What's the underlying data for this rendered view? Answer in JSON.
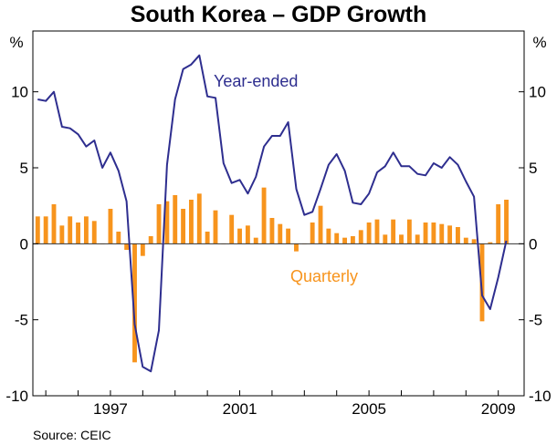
{
  "chart_data": {
    "type": "bar+line",
    "title": "South Korea – GDP Growth",
    "y_unit_left": "%",
    "y_unit_right": "%",
    "ylim": [
      -10,
      14
    ],
    "y_ticks": [
      10,
      5,
      0,
      -5,
      -10
    ],
    "x_ticks": [
      {
        "label": "1997",
        "year": 1997
      },
      {
        "label": "2001",
        "year": 2001
      },
      {
        "label": "2005",
        "year": 2005
      },
      {
        "label": "2009",
        "year": 2009
      }
    ],
    "x_range": [
      1994.6,
      2009.8
    ],
    "source": "Source: CEIC",
    "colors": {
      "line": "#2e2e8f",
      "bar": "#f7941d",
      "axis": "#000000",
      "zero": "#333333"
    },
    "series": [
      {
        "name": "Year-ended",
        "kind": "line",
        "start": 1994.75,
        "step": 0.25,
        "values": [
          9.5,
          9.4,
          10.0,
          7.7,
          7.6,
          7.2,
          6.4,
          6.8,
          5.0,
          6.0,
          4.8,
          2.8,
          -5.3,
          -8.1,
          -8.4,
          -5.7,
          5.2,
          9.5,
          11.5,
          11.8,
          12.4,
          9.7,
          9.6,
          5.3,
          4.0,
          4.2,
          3.3,
          4.4,
          6.4,
          7.1,
          7.1,
          8.0,
          3.6,
          1.9,
          2.1,
          3.6,
          5.2,
          5.9,
          4.8,
          2.7,
          2.6,
          3.3,
          4.7,
          5.1,
          6.0,
          5.1,
          5.1,
          4.6,
          4.5,
          5.3,
          5.0,
          5.7,
          5.2,
          4.1,
          3.1,
          -3.4,
          -4.3,
          -2.2,
          0.2
        ]
      },
      {
        "name": "Quarterly",
        "kind": "bar",
        "start": 1994.75,
        "step": 0.25,
        "values": [
          1.8,
          1.8,
          2.6,
          1.2,
          1.8,
          1.4,
          1.8,
          1.5,
          0.0,
          2.3,
          0.8,
          -0.4,
          -7.8,
          -0.8,
          0.5,
          2.6,
          2.8,
          3.2,
          2.3,
          2.9,
          3.3,
          0.8,
          2.2,
          0.0,
          1.9,
          1.0,
          1.2,
          0.4,
          3.7,
          1.7,
          1.3,
          1.0,
          -0.5,
          0.0,
          1.4,
          2.5,
          1.0,
          0.7,
          0.4,
          0.5,
          0.9,
          1.4,
          1.6,
          0.6,
          1.6,
          0.6,
          1.6,
          0.6,
          1.4,
          1.4,
          1.3,
          1.2,
          1.1,
          0.4,
          0.3,
          -5.1,
          0.1,
          2.6,
          2.9
        ]
      }
    ]
  }
}
